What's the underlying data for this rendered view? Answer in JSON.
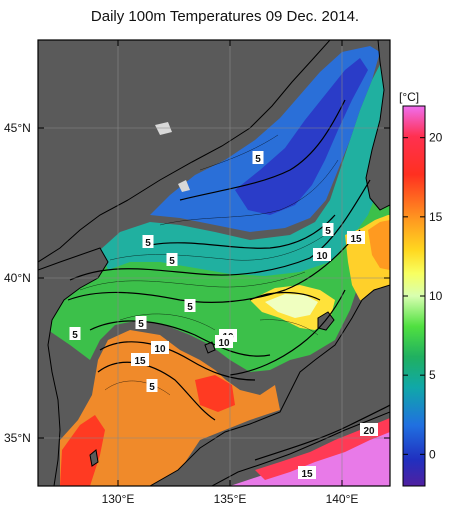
{
  "title": "Daily 100m Temperatures 09 Dec. 2014.",
  "axes": {
    "lat_labels": [
      "45°N",
      "40°N",
      "35°N"
    ],
    "lon_labels": [
      "130°E",
      "135°E",
      "140°E"
    ]
  },
  "colorbar": {
    "unit": "[°C]",
    "ticks": [
      "20",
      "15",
      "10",
      "5",
      "0"
    ],
    "range": [
      -2,
      22
    ],
    "tick_values": [
      20,
      15,
      10,
      5,
      0
    ],
    "colors": [
      "#e050e0",
      "#ff2020",
      "#ff6020",
      "#ffb020",
      "#ffff30",
      "#90ff50",
      "#20c030",
      "#10a8a0",
      "#2060e0",
      "#2020b0",
      "#5020a0"
    ]
  },
  "palette": {
    "land": "#5a5a5a",
    "coast": "#000000",
    "frame": "#000000",
    "grid": "#888888"
  },
  "isotherm_labels": [
    "5",
    "5",
    "5",
    "5",
    "10",
    "15",
    "5",
    "5",
    "10",
    "15",
    "10",
    "10",
    "5",
    "5",
    "15",
    "20"
  ]
}
